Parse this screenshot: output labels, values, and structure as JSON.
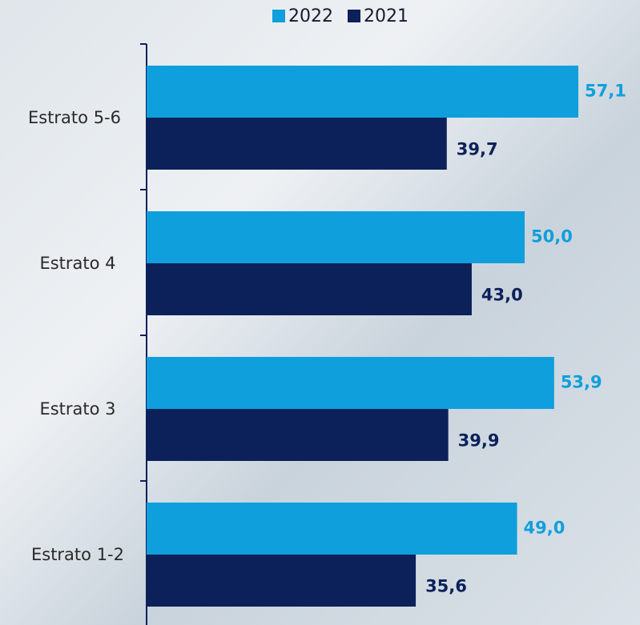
{
  "chart_data": {
    "type": "bar",
    "orientation": "horizontal",
    "categories": [
      "Estrato 5-6",
      "Estrato 4",
      "Estrato 3",
      "Estrato 1-2"
    ],
    "series": [
      {
        "name": "2022",
        "color": "#0f9fdd",
        "values": [
          57.1,
          50.0,
          53.9,
          49.0
        ],
        "value_labels": [
          "57,1",
          "50,0",
          "53,9",
          "49,0"
        ]
      },
      {
        "name": "2021",
        "color": "#0c2159",
        "values": [
          39.7,
          43.0,
          39.9,
          35.6
        ],
        "value_labels": [
          "39,7",
          "43,0",
          "39,9",
          "35,6"
        ]
      }
    ],
    "legend": "top"
  }
}
